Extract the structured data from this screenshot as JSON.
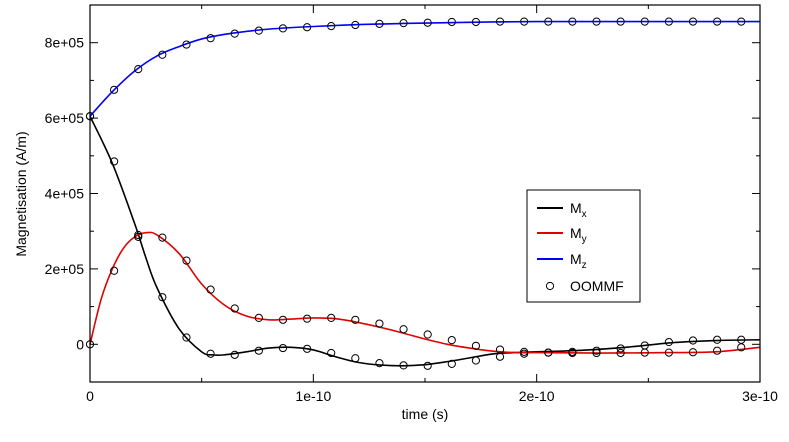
{
  "chart_data": {
    "type": "line",
    "xlabel": "time (s)",
    "ylabel": "Magnetisation (A/m)",
    "xlim": [
      0,
      3e-10
    ],
    "ylim": [
      -100000,
      900000
    ],
    "x_ticks": [
      0,
      1e-10,
      2e-10,
      3e-10
    ],
    "x_tick_labels": [
      "0",
      "1e-10",
      "2e-10",
      "3e-10"
    ],
    "y_ticks": [
      0,
      200000,
      400000,
      600000,
      800000
    ],
    "y_tick_labels": [
      "0",
      "2e+05",
      "4e+05",
      "6e+05",
      "8e+05"
    ],
    "grid": false,
    "legend_position": "right",
    "series": [
      {
        "name": "M",
        "subscript": "x",
        "color": "#000000",
        "style": "line",
        "x": [
          0,
          1e-11,
          2e-11,
          2.5e-11,
          3e-11,
          4e-11,
          5e-11,
          5.5e-11,
          6e-11,
          7e-11,
          8e-11,
          9e-11,
          1e-10,
          1.1e-10,
          1.2e-10,
          1.3e-10,
          1.4e-10,
          1.5e-10,
          1.6e-10,
          1.7e-10,
          1.8e-10,
          1.9e-10,
          2e-10,
          2.2e-10,
          2.4e-10,
          2.6e-10,
          2.8e-10,
          3e-10
        ],
        "values": [
          605000,
          480000,
          320000,
          230000,
          150000,
          40000,
          -20000,
          -28000,
          -28000,
          -20000,
          -10000,
          -8000,
          -15000,
          -33000,
          -48000,
          -55000,
          -57000,
          -54000,
          -46000,
          -36000,
          -26000,
          -22000,
          -20000,
          -16000,
          -8000,
          4000,
          10000,
          12000
        ]
      },
      {
        "name": "M",
        "subscript": "y",
        "color": "#e00000",
        "style": "line",
        "x": [
          0,
          5e-12,
          1e-11,
          1.5e-11,
          2e-11,
          2.5e-11,
          3e-11,
          4e-11,
          5e-11,
          6e-11,
          7e-11,
          8e-11,
          9e-11,
          1e-10,
          1.1e-10,
          1.2e-10,
          1.3e-10,
          1.4e-10,
          1.5e-10,
          1.6e-10,
          1.7e-10,
          1.8e-10,
          1.9e-10,
          2e-10,
          2.2e-10,
          2.4e-10,
          2.6e-10,
          2.8e-10,
          3e-10
        ],
        "values": [
          0,
          120000,
          200000,
          255000,
          285000,
          296000,
          290000,
          240000,
          160000,
          105000,
          75000,
          65000,
          67000,
          70000,
          68000,
          58000,
          45000,
          30000,
          14000,
          0,
          -10000,
          -18000,
          -22000,
          -22000,
          -23000,
          -23000,
          -22000,
          -20000,
          -8000
        ]
      },
      {
        "name": "M",
        "subscript": "z",
        "color": "#0000ff",
        "style": "line",
        "x": [
          0,
          1e-11,
          2e-11,
          3e-11,
          4e-11,
          5e-11,
          6e-11,
          7e-11,
          8e-11,
          9e-11,
          1e-10,
          1.2e-10,
          1.4e-10,
          1.6e-10,
          1.8e-10,
          2e-10,
          2.2e-10,
          2.4e-10,
          2.6e-10,
          2.8e-10,
          3e-10
        ],
        "values": [
          605000,
          670000,
          725000,
          765000,
          790000,
          810000,
          822000,
          830000,
          836000,
          840000,
          843000,
          848000,
          851000,
          853000,
          855000,
          856000,
          856000,
          856000,
          856000,
          856000,
          856000
        ]
      },
      {
        "name": "OOMMF",
        "color": "#000000",
        "style": "marker-open-circle",
        "groups": [
          {
            "x": [
              0,
              1.08e-11,
              2.16e-11,
              3.24e-11,
              4.32e-11,
              5.4e-11,
              6.48e-11,
              7.56e-11,
              8.64e-11,
              9.72e-11,
              1.08e-10,
              1.188e-10,
              1.296e-10,
              1.404e-10,
              1.512e-10,
              1.62e-10,
              1.728e-10,
              1.836e-10,
              1.944e-10,
              2.052e-10,
              2.16e-10,
              2.268e-10,
              2.376e-10,
              2.484e-10,
              2.592e-10,
              2.7e-10,
              2.808e-10,
              2.916e-10
            ],
            "values": [
              605000,
              485000,
              285000,
              125000,
              18000,
              -25000,
              -28000,
              -17000,
              -10000,
              -12000,
              -23000,
              -37000,
              -50000,
              -56000,
              -57000,
              -52000,
              -43000,
              -33000,
              -25000,
              -22000,
              -20000,
              -17000,
              -11000,
              -3000,
              6000,
              10000,
              12000,
              12000
            ]
          },
          {
            "x": [
              0,
              1.08e-11,
              2.16e-11,
              3.24e-11,
              4.32e-11,
              5.4e-11,
              6.48e-11,
              7.56e-11,
              8.64e-11,
              9.72e-11,
              1.08e-10,
              1.188e-10,
              1.296e-10,
              1.404e-10,
              1.512e-10,
              1.62e-10,
              1.728e-10,
              1.836e-10,
              1.944e-10,
              2.052e-10,
              2.16e-10,
              2.268e-10,
              2.376e-10,
              2.484e-10,
              2.592e-10,
              2.7e-10,
              2.808e-10,
              2.916e-10
            ],
            "values": [
              0,
              195000,
              290000,
              283000,
              222000,
              145000,
              95000,
              70000,
              65000,
              68000,
              70000,
              65000,
              55000,
              40000,
              26000,
              11000,
              -4000,
              -14000,
              -20000,
              -22000,
              -23000,
              -23000,
              -23000,
              -22000,
              -22000,
              -21000,
              -17000,
              -8000
            ]
          },
          {
            "x": [
              0,
              1.08e-11,
              2.16e-11,
              3.24e-11,
              4.32e-11,
              5.4e-11,
              6.48e-11,
              7.56e-11,
              8.64e-11,
              9.72e-11,
              1.08e-10,
              1.188e-10,
              1.296e-10,
              1.404e-10,
              1.512e-10,
              1.62e-10,
              1.728e-10,
              1.836e-10,
              1.944e-10,
              2.052e-10,
              2.16e-10,
              2.268e-10,
              2.376e-10,
              2.484e-10,
              2.592e-10,
              2.7e-10,
              2.808e-10,
              2.916e-10
            ],
            "values": [
              605000,
              675000,
              730000,
              768000,
              795000,
              812000,
              824000,
              832000,
              838000,
              841000,
              844000,
              847000,
              850000,
              852000,
              853000,
              855000,
              855000,
              856000,
              856000,
              856000,
              856000,
              856000,
              856000,
              856000,
              856000,
              856000,
              856000,
              856000
            ]
          }
        ]
      }
    ]
  }
}
